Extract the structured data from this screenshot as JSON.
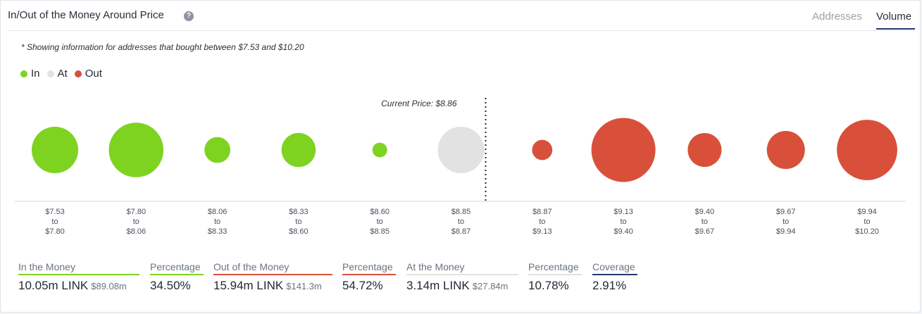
{
  "header": {
    "title": "In/Out of the Money Around Price",
    "help_icon": "question-circle-icon",
    "tabs": [
      {
        "label": "Addresses",
        "active": false
      },
      {
        "label": "Volume",
        "active": true
      }
    ]
  },
  "note": "* Showing information for addresses that bought between $7.53 and $10.20",
  "legend": [
    {
      "label": "In",
      "color": "#7ed321"
    },
    {
      "label": "At",
      "color": "#e2e2e2"
    },
    {
      "label": "Out",
      "color": "#d9503a"
    }
  ],
  "chart_data": {
    "type": "scatter",
    "current_price_label": "Current Price: $8.86",
    "current_price": 8.86,
    "categories": [
      [
        "$7.53",
        "to",
        "$7.80"
      ],
      [
        "$7.80",
        "to",
        "$8.06"
      ],
      [
        "$8.06",
        "to",
        "$8.33"
      ],
      [
        "$8.33",
        "to",
        "$8.60"
      ],
      [
        "$8.60",
        "to",
        "$8.85"
      ],
      [
        "$8.85",
        "to",
        "$8.87"
      ],
      [
        "$8.87",
        "to",
        "$9.13"
      ],
      [
        "$9.13",
        "to",
        "$9.40"
      ],
      [
        "$9.40",
        "to",
        "$9.67"
      ],
      [
        "$9.67",
        "to",
        "$9.94"
      ],
      [
        "$9.94",
        "to",
        "$10.20"
      ]
    ],
    "status": [
      "in",
      "in",
      "in",
      "in",
      "in",
      "at",
      "out",
      "out",
      "out",
      "out",
      "out"
    ],
    "relative_volume": [
      1.0,
      1.38,
      0.31,
      0.54,
      0.1,
      1.0,
      0.19,
      1.9,
      0.53,
      0.67,
      1.69
    ]
  },
  "stats": [
    {
      "label": "In the Money",
      "value": "10.05m LINK",
      "sub": "$89.08m",
      "color": "#7ed321"
    },
    {
      "label": "Percentage",
      "value": "34.50%",
      "sub": "",
      "color": "#7ed321"
    },
    {
      "label": "Out of the Money",
      "value": "15.94m LINK",
      "sub": "$141.3m",
      "color": "#d9503a"
    },
    {
      "label": "Percentage",
      "value": "54.72%",
      "sub": "",
      "color": "#d9503a"
    },
    {
      "label": "At the Money",
      "value": "3.14m LINK",
      "sub": "$27.84m",
      "color": "#e2e2e2"
    },
    {
      "label": "Percentage",
      "value": "10.78%",
      "sub": "",
      "color": "#e2e2e2"
    },
    {
      "label": "Coverage",
      "value": "2.91%",
      "sub": "",
      "color": "#243a6e"
    }
  ]
}
